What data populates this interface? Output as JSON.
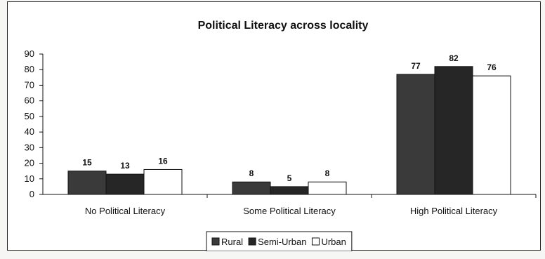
{
  "chart_data": {
    "type": "bar",
    "title": "Political Literacy across locality",
    "xlabel": "",
    "ylabel": "",
    "categories": [
      "No Political Literacy",
      "Some Political Literacy",
      "High Political Literacy"
    ],
    "series": [
      {
        "name": "Rural",
        "values": [
          15,
          8,
          77
        ],
        "color": "#3a3a3a"
      },
      {
        "name": "Semi-Urban",
        "values": [
          13,
          5,
          82
        ],
        "color": "#262626"
      },
      {
        "name": "Urban",
        "values": [
          16,
          8,
          76
        ],
        "color": "#ffffff"
      }
    ],
    "ylim": [
      0,
      90
    ],
    "yticks": [
      0,
      10,
      20,
      30,
      40,
      50,
      60,
      70,
      80,
      90
    ],
    "grid": false,
    "legend_position": "bottom"
  }
}
